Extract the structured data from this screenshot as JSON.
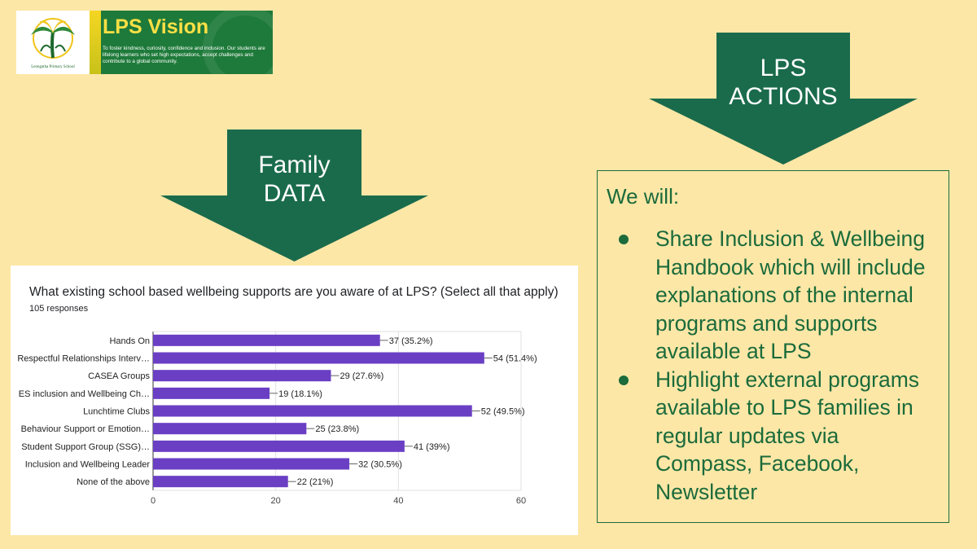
{
  "banner": {
    "title": "LPS Vision",
    "description": "To foster kindness, curiosity, confidence and inclusion. Our students are lifelong learners who set high expectations, accept challenges and contribute to a global community.",
    "logo_text": "Leongatha Primary School"
  },
  "arrows": {
    "family": {
      "line1": "Family",
      "line2": "DATA"
    },
    "actions": {
      "line1": "LPS",
      "line2": "ACTIONS"
    }
  },
  "actions": {
    "heading": "We will:",
    "items": [
      {
        "text": "Share Inclusion & Wellbeing Handbook which will include explanations of the internal programs and supports available at LPS"
      },
      {
        "text": "Highlight external programs available to LPS families in regular updates via Compass, Facebook, Newsletter"
      }
    ]
  },
  "colors": {
    "background": "#fde7a7",
    "arrow_green": "#1a6b4c",
    "text_green": "#1b6b3b",
    "bar_purple": "#6a3fc4"
  },
  "chart_data": {
    "type": "bar",
    "orientation": "horizontal",
    "title": "What existing school based wellbeing supports are you aware of at LPS? (Select all that apply)",
    "subtitle": "105 responses",
    "categories": [
      "Hands On",
      "Respectful Relationships Interv…",
      "CASEA Groups",
      "ES inclusion and Wellbeing Ch…",
      "Lunchtime Clubs",
      "Behaviour Support or Emotion…",
      "Student Support Group (SSG)…",
      "Inclusion and Wellbeing Leader",
      "None of the above"
    ],
    "values": [
      37,
      54,
      29,
      19,
      52,
      25,
      41,
      32,
      22
    ],
    "data_labels": [
      "37 (35.2%)",
      "54 (51.4%)",
      "29 (27.6%)",
      "19 (18.1%)",
      "52 (49.5%)",
      "25 (23.8%)",
      "41 (39%)",
      "32 (30.5%)",
      "22 (21%)"
    ],
    "xticks": [
      "0",
      "20",
      "40",
      "60"
    ],
    "xlim": [
      0,
      60
    ],
    "grid": true
  }
}
